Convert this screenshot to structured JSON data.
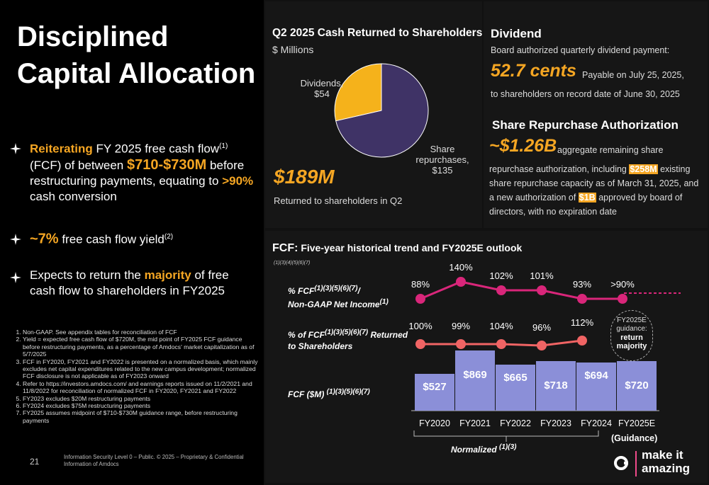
{
  "left": {
    "title": "Disciplined Capital Allocation",
    "bullet1": {
      "a": "Reiterating",
      "b": " FY 2025 free cash flow",
      "sup1": "(1)",
      "c": " (FCF) of between ",
      "d": "$710-$730M",
      "e": " before restructuring payments, equating to ",
      "f": ">90%",
      "g": " cash conversion"
    },
    "bullet2": {
      "a": "~7%",
      "b": " free cash flow yield",
      "sup": "(2)"
    },
    "bullet3": {
      "a": "Expects to return the ",
      "b": "majority",
      "c": " of free cash flow to shareholders in FY2025"
    },
    "footnotes": [
      "Non-GAAP. See appendix tables for reconciliation of FCF",
      "Yield = expected free cash flow of $720M, the mid point of FY2025 FCF guidance before restructuring payments, as a percentage of Amdocs' market capitalization as of 5/7/2025",
      "FCF in FY2020, FY2021 and FY2022 is presented on a normalized basis, which mainly excludes net capital expenditures related to the new campus development; normalized FCF disclosure is not applicable as of FY2023 onward",
      "Refer to https://investors.amdocs.com/ and earnings reports issued on 11/2/2021 and 11/8/2022 for reconciliation of normalized FCF in FY2020, FY2021 and FY2022",
      "FY2023 excludes $20M restructuring payments",
      "FY2024 excludes $75M restructuring payments",
      "FY2025 assumes midpoint of $710-$730M guidance range, before restructuring payments"
    ],
    "page_number": "21",
    "info": "Information Security Level 0 – Public. © 2025 – Proprietary & Confidential Information of Amdocs"
  },
  "q2": {
    "title": "Q2 2025 Cash Returned to Shareholders",
    "unit": "$ Millions",
    "total": "$189M",
    "total_caption": "Returned to shareholders in Q2",
    "dividends_label": "Dividends,",
    "dividends_value": "$54",
    "repurchases_label1": "Share",
    "repurchases_label2": "repurchases,",
    "repurchases_value": "$135"
  },
  "chart_data": [
    {
      "type": "pie",
      "title": "Q2 2025 Cash Returned to Shareholders",
      "unit": "$ Millions",
      "categories": [
        "Dividends",
        "Share repurchases"
      ],
      "values": [
        54,
        135
      ],
      "colors": [
        "#f5b21b",
        "#3f3366"
      ]
    },
    {
      "type": "bar",
      "title": "FCF: Five-year historical trend and FY2025E outlook",
      "categories": [
        "FY2020",
        "FY2021",
        "FY2022",
        "FY2023",
        "FY2024",
        "FY2025E"
      ],
      "values": [
        527,
        869,
        665,
        718,
        694,
        720
      ],
      "value_labels": [
        "$527",
        "$869",
        "$665",
        "$718",
        "$694",
        "$720"
      ],
      "ylabel": "FCF ($M)",
      "color": "#8b8fd8"
    },
    {
      "type": "line",
      "name": "% FCF / Non-GAAP Net Income",
      "categories": [
        "FY2020",
        "FY2021",
        "FY2022",
        "FY2023",
        "FY2024",
        "FY2025E"
      ],
      "values": [
        88,
        140,
        102,
        101,
        93,
        90
      ],
      "value_labels": [
        "88%",
        "140%",
        "102%",
        "101%",
        "93%",
        ">90%"
      ],
      "color": "#d9267a"
    },
    {
      "type": "line",
      "name": "% of FCF Returned to Shareholders",
      "categories": [
        "FY2020",
        "FY2021",
        "FY2022",
        "FY2023",
        "FY2024"
      ],
      "values": [
        100,
        99,
        104,
        96,
        112
      ],
      "value_labels": [
        "100%",
        "99%",
        "104%",
        "96%",
        "112%"
      ],
      "color": "#f06464"
    }
  ],
  "dividend": {
    "title": "Dividend",
    "subtitle": "Board authorized quarterly dividend payment:",
    "amount": "52.7 cents",
    "payable": "Payable on July 25, 2025,",
    "record": "to shareholders on record date of June 30, 2025"
  },
  "repurchase": {
    "title": "Share Repurchase Authorization",
    "amount": "~$1.26B",
    "t1": " aggregate remaining share",
    "t2": "repurchase authorization, including ",
    "hl1": "$258M",
    "t3": " existing share repurchase capacity as of March 31, 2025, and a new authorization of ",
    "hl2": "$1B",
    "t4": " approved by board of directors, with no expiration date"
  },
  "fcf": {
    "title_a": "FCF:",
    "title_b": " Five-year historical trend and FY2025E outlook",
    "title_refs": "(1)(3)(4)(5)(6)(7)",
    "row1_a": "% FCF",
    "row1_sup": "(1)(3)(5)(6)(7)",
    "row1_b": "/",
    "row1_c": "Non-GAAP Net Income",
    "row1_sup2": "(1)",
    "row2_a": "% of FCF",
    "row2_sup": "(1)(3)(5)(6)(7)",
    "row2_b": " Returned",
    "row2_c": "to Shareholders",
    "row3_a": "FCF ($M) ",
    "row3_sup": "(1)(3)(5)(6)(7)",
    "guidance_box_a": "FY2025E",
    "guidance_box_b": "guidance:",
    "guidance_box_c": "return",
    "guidance_box_d": "majority",
    "normalized": "Normalized ",
    "normalized_sup": "(1)(3)",
    "guidance": "(Guidance)"
  },
  "brand": {
    "logo": "a",
    "line1": "make it",
    "line2": "amazing"
  }
}
